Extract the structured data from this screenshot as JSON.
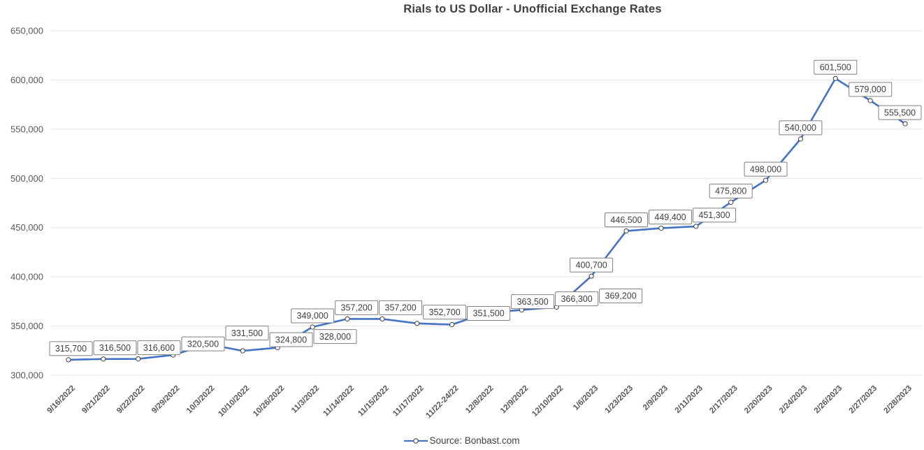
{
  "chart_data": {
    "type": "line",
    "title": "Rials to US Dollar - Unofficial Exchange Rates",
    "categories": [
      "9/16/2022",
      "9/21/2022",
      "9/22/2022",
      "9/29/2022",
      "10/3/2022",
      "10/10/2022",
      "10/26/2022",
      "11/3/2022",
      "11/14/2022",
      "11/15/2022",
      "11/17/2022",
      "11/22-24/22",
      "12/8/2022",
      "12/9/2022",
      "12/10/2022",
      "1/6/2023",
      "1/23/2023",
      "2/9/2023",
      "2/11/2023",
      "2/17/2023",
      "2/20/2023",
      "2/24/2023",
      "2/26/2023",
      "2/27/2023",
      "2/28/2023"
    ],
    "series": [
      {
        "name": "Source: Bonbast.com",
        "values": [
          315700,
          316500,
          316600,
          320500,
          331500,
          324800,
          328000,
          349000,
          357200,
          357200,
          352700,
          351500,
          363500,
          366300,
          369200,
          400700,
          446500,
          449400,
          451300,
          475800,
          498000,
          540000,
          601500,
          579000,
          555500
        ]
      }
    ],
    "xlabel": "",
    "ylabel": "",
    "ylim": [
      300000,
      650000
    ],
    "ytick_step": 50000,
    "grid": true,
    "data_labels": true,
    "legend_position": "bottom",
    "colors": {
      "line": "#4472C4",
      "marker_fill": "#FFFFFF",
      "marker_stroke": "#404040",
      "grid": "#E3E3E3",
      "axis_text": "#595959",
      "title_text": "#404040",
      "label_text": "#3F3F3F",
      "label_border": "#7F7F7F",
      "label_fill": "#FFFFFF",
      "background": "#FFFFFF"
    }
  }
}
